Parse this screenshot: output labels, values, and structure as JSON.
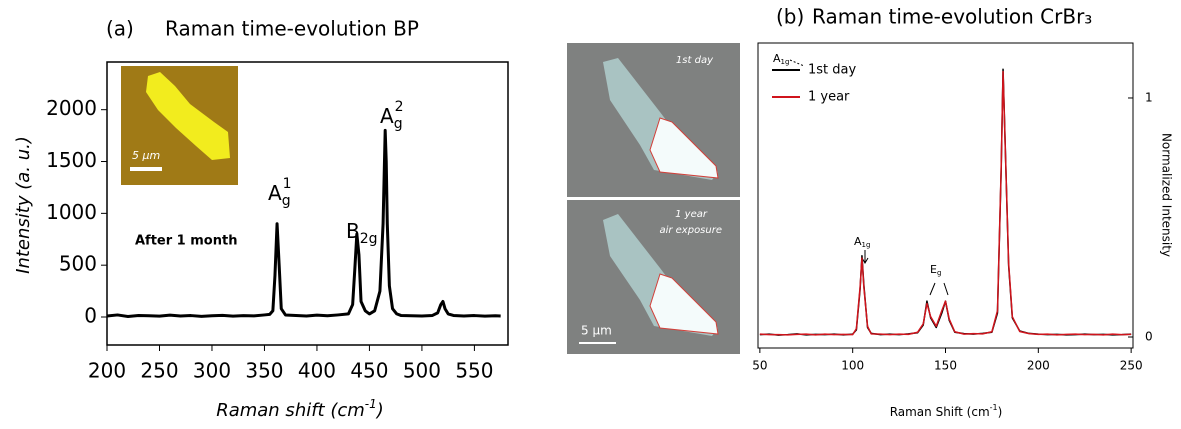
{
  "chart_data": [
    {
      "type": "line",
      "panel": "(a)",
      "title": "Raman time-evolution BP",
      "xlabel": {
        "text": "Raman shift (cm",
        "sup": "-1",
        "end": ")"
      },
      "ylabel": "Intensity (a. u.)",
      "xlim": [
        200,
        582
      ],
      "xticks": [
        200,
        250,
        300,
        350,
        400,
        450,
        500,
        550
      ],
      "ylim": [
        -270,
        2460
      ],
      "yticks": [
        0,
        500,
        1000,
        1500,
        2000
      ],
      "color": "#000000",
      "x": [
        200,
        210,
        220,
        230,
        240,
        250,
        260,
        270,
        280,
        290,
        300,
        310,
        320,
        330,
        340,
        350,
        355,
        358,
        360,
        362,
        364,
        366,
        370,
        380,
        390,
        400,
        410,
        420,
        430,
        434,
        436,
        438,
        440,
        442,
        446,
        450,
        455,
        460,
        463,
        465,
        466,
        467,
        469,
        472,
        476,
        480,
        490,
        500,
        510,
        515,
        518,
        520,
        522,
        525,
        530,
        540,
        550,
        560,
        570,
        575
      ],
      "values": [
        10,
        20,
        5,
        15,
        12,
        8,
        18,
        10,
        14,
        6,
        12,
        16,
        9,
        13,
        11,
        20,
        25,
        60,
        400,
        900,
        500,
        80,
        20,
        15,
        10,
        18,
        12,
        20,
        30,
        120,
        450,
        800,
        600,
        150,
        60,
        30,
        60,
        250,
        900,
        1800,
        1500,
        900,
        300,
        80,
        30,
        15,
        12,
        10,
        15,
        40,
        120,
        150,
        80,
        30,
        15,
        10,
        14,
        8,
        12,
        10
      ],
      "annotations": [
        {
          "text": "A",
          "sub": "g",
          "sup": "1"
        },
        {
          "text": "B",
          "sub": "2g"
        },
        {
          "text": "A",
          "sub": "g",
          "sup": "2"
        },
        {
          "text": "After 1 month"
        }
      ],
      "inset_scale": "5 μm"
    },
    {
      "type": "line",
      "panel": "(b)",
      "title": "Raman time-evolution CrBr₃",
      "xlabel": {
        "text": "Raman Shift (cm",
        "sup": "-1",
        "end": ")"
      },
      "ylabel": "Normalized Intensity",
      "xlim": [
        49,
        251
      ],
      "xticks": [
        50,
        100,
        150,
        200,
        250
      ],
      "ylim": [
        -0.046,
        1.23
      ],
      "yticks": [
        0,
        1
      ],
      "x": [
        50,
        55,
        60,
        65,
        70,
        75,
        80,
        85,
        90,
        95,
        100,
        102,
        104,
        105,
        106,
        108,
        110,
        115,
        120,
        125,
        130,
        135,
        138,
        140,
        142,
        145,
        148,
        150,
        152,
        155,
        160,
        165,
        170,
        175,
        178,
        180,
        181,
        182,
        184,
        186,
        190,
        195,
        200,
        205,
        210,
        215,
        220,
        225,
        230,
        235,
        240,
        245,
        250
      ],
      "series": [
        {
          "name": "1st day",
          "color": "#000000",
          "values": [
            0.01,
            0.012,
            0.008,
            0.01,
            0.013,
            0.009,
            0.011,
            0.01,
            0.012,
            0.009,
            0.012,
            0.03,
            0.2,
            0.34,
            0.22,
            0.04,
            0.015,
            0.01,
            0.012,
            0.01,
            0.013,
            0.018,
            0.05,
            0.15,
            0.08,
            0.04,
            0.1,
            0.15,
            0.07,
            0.02,
            0.014,
            0.012,
            0.015,
            0.02,
            0.1,
            0.7,
            1.12,
            0.85,
            0.3,
            0.08,
            0.025,
            0.015,
            0.012,
            0.01,
            0.011,
            0.009,
            0.01,
            0.012,
            0.01,
            0.011,
            0.009,
            0.01,
            0.012
          ]
        },
        {
          "name": "1 year",
          "color": "#d0141c",
          "values": [
            0.012,
            0.01,
            0.01,
            0.009,
            0.011,
            0.012,
            0.009,
            0.012,
            0.01,
            0.011,
            0.01,
            0.035,
            0.21,
            0.33,
            0.21,
            0.045,
            0.013,
            0.012,
            0.01,
            0.012,
            0.011,
            0.02,
            0.055,
            0.14,
            0.085,
            0.045,
            0.11,
            0.15,
            0.075,
            0.022,
            0.012,
            0.014,
            0.013,
            0.022,
            0.11,
            0.71,
            1.11,
            0.84,
            0.31,
            0.085,
            0.023,
            0.014,
            0.011,
            0.012,
            0.009,
            0.011,
            0.012,
            0.01,
            0.011,
            0.009,
            0.012,
            0.01,
            0.011
          ]
        }
      ],
      "annotations": [
        {
          "text": "A",
          "sub": "1g"
        },
        {
          "text": "E",
          "sub": "g"
        },
        {
          "text": "A",
          "sub": "1g"
        }
      ],
      "photo_labels": [
        "1st day",
        "1 year",
        "air exposure",
        "5 μm"
      ]
    }
  ]
}
